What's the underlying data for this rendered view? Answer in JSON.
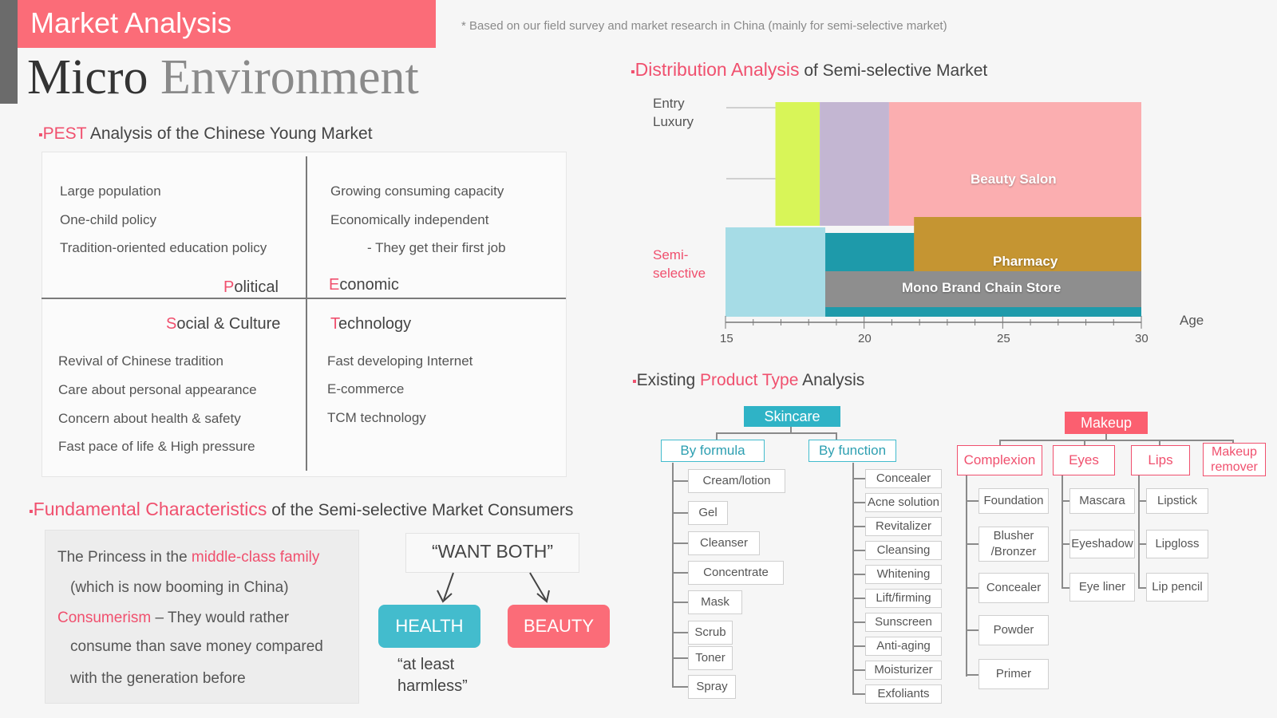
{
  "header": {
    "banner": "Market Analysis",
    "footnote": "* Based on our field survey and  market  research in China (mainly for semi-selective market)",
    "title_word1": "Micro",
    "title_word2": "Environment"
  },
  "pest": {
    "heading_red": "PEST",
    "heading_rest": " Analysis  of the Chinese Young Market",
    "political": {
      "initial": "P",
      "rest": "olitical",
      "items": [
        "Large population",
        "One-child policy",
        "Tradition-oriented education policy"
      ]
    },
    "economic": {
      "initial": "E",
      "rest": "conomic",
      "items": [
        "Growing consuming capacity",
        "Economically independent",
        "- They get their first job"
      ]
    },
    "social": {
      "initial": "S",
      "rest": "ocial & Culture",
      "items": [
        "Revival of Chinese tradition",
        "Care about personal appearance",
        "Concern about health & safety",
        "Fast pace of life & High pressure"
      ]
    },
    "technology": {
      "initial": "T",
      "rest": "echnology",
      "items": [
        "Fast developing Internet",
        "E-commerce",
        "TCM technology"
      ]
    }
  },
  "fundamental": {
    "heading_red": "Fundamental Characteristics",
    "heading_rest": " of the Semi-selective Market Consumers",
    "line1_a": "The Princess in the ",
    "line1_red": "middle-class family",
    "line2": "(which is now booming in China)",
    "line3_red": "Consumerism",
    "line3_rest": " – They would rather",
    "line4": "consume than save money compared",
    "line5": "with the generation before",
    "want": "“WANT  BOTH”",
    "health": "HEALTH",
    "beauty": "BEAUTY",
    "health_sub1": "“at least",
    "health_sub2": "harmless”"
  },
  "distribution": {
    "heading_red": "Distribution Analysis",
    "heading_rest": " of Semi-selective Market",
    "y_label_top": "Entry Luxury",
    "y_label_top1": "Entry",
    "y_label_top2": "Luxury",
    "y_label_bottom1": "Semi-",
    "y_label_bottom2": "selective",
    "x_label": "Age",
    "x_ticks": [
      "15",
      "20",
      "25",
      "30"
    ],
    "bars": {
      "beauty_salon": "Beauty Salon",
      "pharmacy": "Pharmacy",
      "mono_brand": "Mono Brand Chain Store"
    }
  },
  "chart_data": {
    "type": "area",
    "title": "Distribution Analysis of Semi-selective Market",
    "xlabel": "Age",
    "ylabel": "",
    "xlim": [
      15,
      30
    ],
    "x_ticks": [
      15,
      20,
      25,
      30
    ],
    "y_categories": [
      "Semi-selective",
      "Entry Luxury"
    ],
    "regions": [
      {
        "name": "",
        "color": "#d8f558",
        "x": [
          16.8,
          18.4
        ],
        "segment": "Entry Luxury"
      },
      {
        "name": "",
        "color": "#c3b6d2",
        "x": [
          18.4,
          20.9
        ],
        "segment": "Entry Luxury"
      },
      {
        "name": "Beauty Salon",
        "color": "#fbaeb0",
        "x": [
          20.9,
          30
        ],
        "segment": "Entry Luxury"
      },
      {
        "name": "",
        "color": "#a6dce6",
        "x": [
          15,
          18.6
        ],
        "segment": "Semi-selective"
      },
      {
        "name": "",
        "color": "#1e9aaa",
        "x": [
          18.6,
          30
        ],
        "segment": "Semi-selective"
      },
      {
        "name": "Pharmacy",
        "color": "#c59532",
        "x": [
          21.8,
          30
        ],
        "segment": "Semi-selective"
      },
      {
        "name": "Mono Brand Chain Store",
        "color": "#8e8e8e",
        "x": [
          18.6,
          30
        ],
        "segment": "Semi-selective"
      }
    ]
  },
  "products": {
    "heading_pre": "Existing ",
    "heading_red": "Product Type",
    "heading_rest": " Analysis",
    "skincare": "Skincare",
    "by_formula": "By formula",
    "by_function": "By function",
    "formula_items": [
      "Cream/lotion",
      "Gel",
      "Cleanser",
      "Concentrate",
      "Mask",
      "Scrub",
      "Toner",
      "Spray"
    ],
    "function_items": [
      "Concealer",
      "Acne solution",
      "Revitalizer",
      "Cleansing",
      "Whitening",
      "Lift/firming",
      "Sunscreen",
      "Anti-aging",
      "Moisturizer",
      "Exfoliants"
    ],
    "makeup": "Makeup",
    "complexion": "Complexion",
    "eyes": "Eyes",
    "lips": "Lips",
    "remover1": "Makeup",
    "remover2": "remover",
    "complexion_items": [
      "Foundation",
      "Blusher",
      "/Bronzer",
      "Concealer",
      "Powder",
      "Primer"
    ],
    "eyes_items": [
      "Mascara",
      "Eyeshadow",
      "Eye liner"
    ],
    "lips_items": [
      "Lipstick",
      "Lipgloss",
      "Lip pencil"
    ]
  },
  "colors": {
    "accent_red": "#fb6c78",
    "accent_blue": "#43bccd"
  }
}
